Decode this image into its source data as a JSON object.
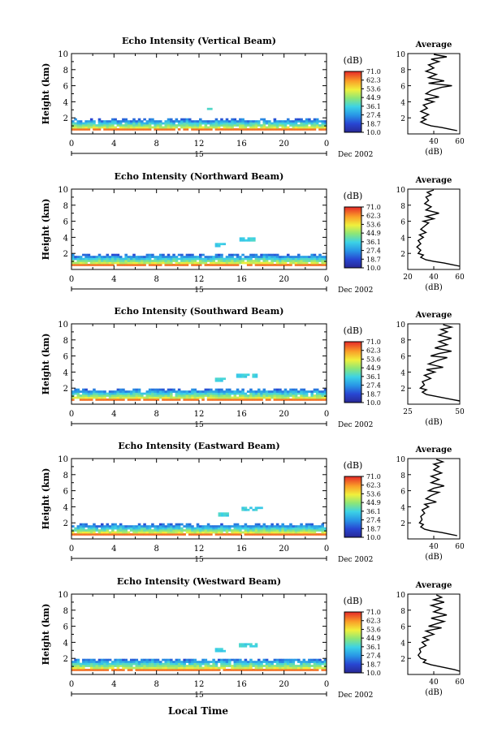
{
  "panels": [
    {
      "title": "Echo Intensity (Vertical Beam)",
      "layer_top": 1.7,
      "clouds": [
        [
          12.5,
          3.0,
          13.2,
          3.2
        ]
      ],
      "avg_xlim": [
        20,
        60
      ],
      "avg_ticks": [
        40,
        60
      ],
      "avg_profile": [
        [
          0.4,
          58
        ],
        [
          0.6,
          52
        ],
        [
          0.8,
          46
        ],
        [
          1.0,
          38
        ],
        [
          1.2,
          34
        ],
        [
          1.5,
          30
        ],
        [
          1.8,
          34
        ],
        [
          2.0,
          31
        ],
        [
          2.4,
          36
        ],
        [
          2.8,
          30
        ],
        [
          3.2,
          35
        ],
        [
          3.6,
          32
        ],
        [
          4.0,
          40
        ],
        [
          4.3,
          33
        ],
        [
          4.6,
          44
        ],
        [
          5.0,
          34
        ],
        [
          5.4,
          38
        ],
        [
          5.8,
          46
        ],
        [
          6.0,
          54
        ],
        [
          6.3,
          36
        ],
        [
          6.6,
          48
        ],
        [
          7.0,
          36
        ],
        [
          7.4,
          42
        ],
        [
          7.8,
          34
        ],
        [
          8.2,
          40
        ],
        [
          8.6,
          36
        ],
        [
          9.0,
          44
        ],
        [
          9.3,
          38
        ],
        [
          9.6,
          50
        ],
        [
          9.9,
          40
        ]
      ]
    },
    {
      "title": "Echo Intensity (Northward Beam)",
      "layer_top": 1.7,
      "clouds": [
        [
          13.5,
          2.8,
          14.5,
          3.2
        ],
        [
          15.8,
          3.5,
          17.5,
          3.8
        ]
      ],
      "avg_xlim": [
        20,
        60
      ],
      "avg_ticks": [
        20,
        40,
        60
      ],
      "avg_profile": [
        [
          0.4,
          60
        ],
        [
          0.6,
          54
        ],
        [
          0.8,
          48
        ],
        [
          1.0,
          40
        ],
        [
          1.2,
          34
        ],
        [
          1.5,
          30
        ],
        [
          1.8,
          32
        ],
        [
          2.0,
          28
        ],
        [
          2.4,
          30
        ],
        [
          2.8,
          27
        ],
        [
          3.2,
          30
        ],
        [
          3.6,
          28
        ],
        [
          4.0,
          32
        ],
        [
          4.3,
          29
        ],
        [
          4.6,
          34
        ],
        [
          5.0,
          30
        ],
        [
          5.4,
          33
        ],
        [
          5.8,
          36
        ],
        [
          6.0,
          32
        ],
        [
          6.3,
          40
        ],
        [
          6.6,
          34
        ],
        [
          7.0,
          44
        ],
        [
          7.4,
          34
        ],
        [
          7.8,
          38
        ],
        [
          8.2,
          33
        ],
        [
          8.6,
          36
        ],
        [
          9.0,
          34
        ],
        [
          9.3,
          38
        ],
        [
          9.6,
          35
        ],
        [
          9.9,
          40
        ]
      ]
    },
    {
      "title": "Echo Intensity (Southward Beam)",
      "layer_top": 1.7,
      "clouds": [
        [
          13.5,
          2.8,
          14.5,
          3.2
        ],
        [
          15.5,
          3.3,
          17.3,
          3.7
        ]
      ],
      "avg_xlim": [
        25,
        50
      ],
      "avg_ticks": [
        25,
        50
      ],
      "avg_profile": [
        [
          0.4,
          50
        ],
        [
          0.6,
          46
        ],
        [
          0.8,
          42
        ],
        [
          1.0,
          38
        ],
        [
          1.2,
          34
        ],
        [
          1.5,
          32
        ],
        [
          1.8,
          34
        ],
        [
          2.0,
          31
        ],
        [
          2.4,
          33
        ],
        [
          2.8,
          32
        ],
        [
          3.2,
          36
        ],
        [
          3.6,
          33
        ],
        [
          4.0,
          38
        ],
        [
          4.3,
          34
        ],
        [
          4.6,
          42
        ],
        [
          5.0,
          35
        ],
        [
          5.4,
          39
        ],
        [
          5.8,
          44
        ],
        [
          6.0,
          36
        ],
        [
          6.3,
          40
        ],
        [
          6.6,
          46
        ],
        [
          7.0,
          38
        ],
        [
          7.4,
          44
        ],
        [
          7.8,
          40
        ],
        [
          8.2,
          46
        ],
        [
          8.6,
          40
        ],
        [
          9.0,
          44
        ],
        [
          9.3,
          41
        ],
        [
          9.6,
          46
        ],
        [
          9.9,
          42
        ]
      ]
    },
    {
      "title": "Echo Intensity (Eastward Beam)",
      "layer_top": 1.7,
      "clouds": [
        [
          13.8,
          2.8,
          14.6,
          3.2
        ],
        [
          16.0,
          3.5,
          18.0,
          3.8
        ]
      ],
      "avg_xlim": [
        20,
        60
      ],
      "avg_ticks": [
        40,
        60
      ],
      "avg_profile": [
        [
          0.4,
          58
        ],
        [
          0.6,
          52
        ],
        [
          0.8,
          46
        ],
        [
          1.0,
          38
        ],
        [
          1.2,
          33
        ],
        [
          1.5,
          30
        ],
        [
          1.8,
          32
        ],
        [
          2.0,
          29
        ],
        [
          2.4,
          31
        ],
        [
          2.8,
          30
        ],
        [
          3.2,
          33
        ],
        [
          3.6,
          31
        ],
        [
          4.0,
          36
        ],
        [
          4.3,
          33
        ],
        [
          4.6,
          42
        ],
        [
          5.0,
          34
        ],
        [
          5.4,
          38
        ],
        [
          5.8,
          44
        ],
        [
          6.0,
          36
        ],
        [
          6.3,
          40
        ],
        [
          6.6,
          48
        ],
        [
          7.0,
          38
        ],
        [
          7.4,
          44
        ],
        [
          7.8,
          38
        ],
        [
          8.2,
          46
        ],
        [
          8.6,
          40
        ],
        [
          9.0,
          44
        ],
        [
          9.3,
          40
        ],
        [
          9.6,
          47
        ],
        [
          9.9,
          42
        ]
      ]
    },
    {
      "title": "Echo Intensity (Westward Beam)",
      "layer_top": 1.8,
      "clouds": [
        [
          13.5,
          2.8,
          14.5,
          3.2
        ],
        [
          15.5,
          3.4,
          17.5,
          3.8
        ]
      ],
      "avg_xlim": [
        20,
        60
      ],
      "avg_ticks": [
        40,
        60
      ],
      "avg_profile": [
        [
          0.4,
          60
        ],
        [
          0.6,
          56
        ],
        [
          0.8,
          50
        ],
        [
          1.0,
          44
        ],
        [
          1.2,
          38
        ],
        [
          1.5,
          32
        ],
        [
          1.8,
          34
        ],
        [
          2.0,
          30
        ],
        [
          2.4,
          28
        ],
        [
          2.8,
          30
        ],
        [
          3.2,
          29
        ],
        [
          3.6,
          34
        ],
        [
          4.0,
          31
        ],
        [
          4.3,
          36
        ],
        [
          4.6,
          32
        ],
        [
          5.0,
          40
        ],
        [
          5.4,
          34
        ],
        [
          5.8,
          46
        ],
        [
          6.0,
          36
        ],
        [
          6.3,
          42
        ],
        [
          6.6,
          48
        ],
        [
          7.0,
          38
        ],
        [
          7.4,
          50
        ],
        [
          7.8,
          40
        ],
        [
          8.2,
          46
        ],
        [
          8.6,
          38
        ],
        [
          9.0,
          48
        ],
        [
          9.3,
          40
        ],
        [
          9.6,
          46
        ],
        [
          9.9,
          42
        ]
      ]
    }
  ],
  "height_label": "Height (km)",
  "y_ticks": [
    "2",
    "4",
    "6",
    "8",
    "10"
  ],
  "x_ticks": [
    "0",
    "4",
    "8",
    "12",
    "16",
    "20",
    "0"
  ],
  "day_label": "15",
  "date_label": "Dec 2002",
  "colorbar_unit": "(dB)",
  "colorbar_ticks": [
    "71.0",
    "62.3",
    "53.6",
    "44.9",
    "36.1",
    "27.4",
    "18.7",
    "10.0"
  ],
  "average_title": "Average",
  "average_unit": "(dB)",
  "xlabel": "Local Time",
  "chart_data": [
    {
      "type": "heatmap",
      "title": "Echo Intensity (Vertical Beam)",
      "xlabel": "Local Time",
      "ylabel": "Height (km)",
      "xlim": [
        0,
        24
      ],
      "ylim": [
        0,
        10
      ],
      "colorbar": {
        "unit": "(dB)",
        "range": [
          10.0,
          71.0
        ]
      },
      "average": {
        "type": "line",
        "title": "Average",
        "xlabel": "(dB)",
        "xlim": [
          20,
          60
        ]
      }
    },
    {
      "type": "heatmap",
      "title": "Echo Intensity (Northward Beam)",
      "xlabel": "Local Time",
      "ylabel": "Height (km)",
      "xlim": [
        0,
        24
      ],
      "ylim": [
        0,
        10
      ],
      "colorbar": {
        "unit": "(dB)",
        "range": [
          10.0,
          71.0
        ]
      },
      "average": {
        "type": "line",
        "title": "Average",
        "xlabel": "(dB)",
        "xlim": [
          20,
          60
        ]
      }
    },
    {
      "type": "heatmap",
      "title": "Echo Intensity (Southward Beam)",
      "xlabel": "Local Time",
      "ylabel": "Height (km)",
      "xlim": [
        0,
        24
      ],
      "ylim": [
        0,
        10
      ],
      "colorbar": {
        "unit": "(dB)",
        "range": [
          10.0,
          71.0
        ]
      },
      "average": {
        "type": "line",
        "title": "Average",
        "xlabel": "(dB)",
        "xlim": [
          25,
          50
        ]
      }
    },
    {
      "type": "heatmap",
      "title": "Echo Intensity (Eastward Beam)",
      "xlabel": "Local Time",
      "ylabel": "Height (km)",
      "xlim": [
        0,
        24
      ],
      "ylim": [
        0,
        10
      ],
      "colorbar": {
        "unit": "(dB)",
        "range": [
          10.0,
          71.0
        ]
      },
      "average": {
        "type": "line",
        "title": "Average",
        "xlabel": "(dB)",
        "xlim": [
          20,
          60
        ]
      }
    },
    {
      "type": "heatmap",
      "title": "Echo Intensity (Westward Beam)",
      "xlabel": "Local Time",
      "ylabel": "Height (km)",
      "xlim": [
        0,
        24
      ],
      "ylim": [
        0,
        10
      ],
      "colorbar": {
        "unit": "(dB)",
        "range": [
          10.0,
          71.0
        ]
      },
      "average": {
        "type": "line",
        "title": "Average",
        "xlabel": "(dB)",
        "xlim": [
          20,
          60
        ]
      }
    }
  ]
}
